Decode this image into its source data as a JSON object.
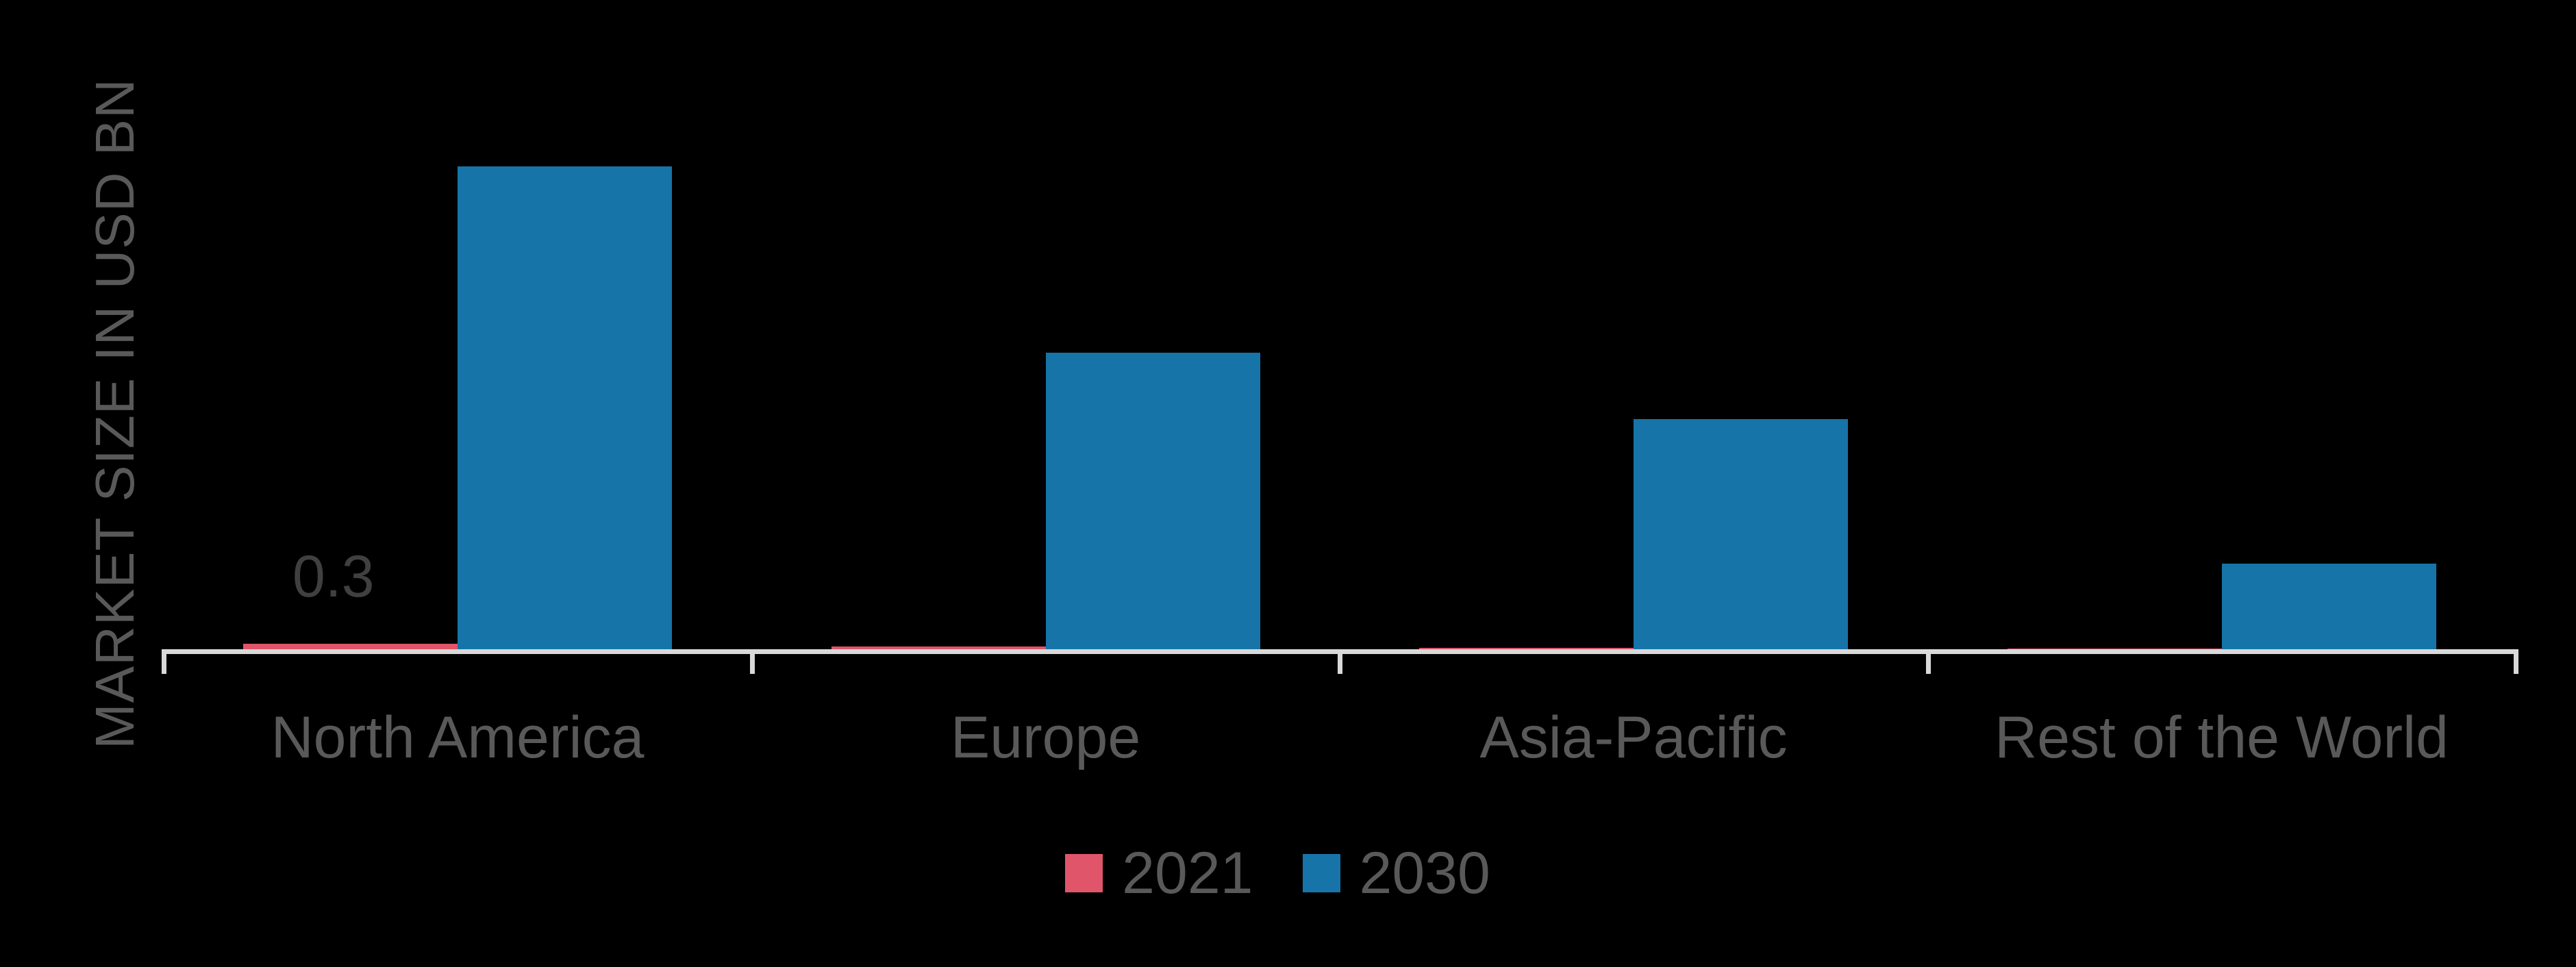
{
  "chart_data": {
    "type": "bar",
    "title": "",
    "xlabel": "",
    "ylabel": "MARKET SIZE IN USD BN",
    "categories": [
      "North America",
      "Europe",
      "Asia-Pacific",
      "Rest of the World"
    ],
    "series": [
      {
        "name": "2021",
        "color": "#e05569",
        "values": [
          0.3,
          0.15,
          0.08,
          0.02
        ]
      },
      {
        "name": "2030",
        "color": "#1674a8",
        "values": [
          26.4,
          16.2,
          12.6,
          4.7
        ]
      }
    ],
    "data_labels": [
      {
        "series": "2021",
        "category": "North America",
        "text": "0.3"
      }
    ],
    "ylim": [
      0,
      26.4
    ],
    "grid": false,
    "y_axis_visible": false,
    "legend_position": "bottom",
    "background": "#000000",
    "axis_color": "#d9d9d9",
    "text_color": "#595959"
  },
  "axis": {
    "y_title": "MARKET SIZE IN USD BN"
  },
  "categories": [
    {
      "label": "North America"
    },
    {
      "label": "Europe"
    },
    {
      "label": "Asia-Pacific"
    },
    {
      "label": "Rest of the World"
    }
  ],
  "data_label_na_2021": "0.3",
  "legend": [
    {
      "label": "2021",
      "color": "#e05569"
    },
    {
      "label": "2030",
      "color": "#1674a8"
    }
  ]
}
